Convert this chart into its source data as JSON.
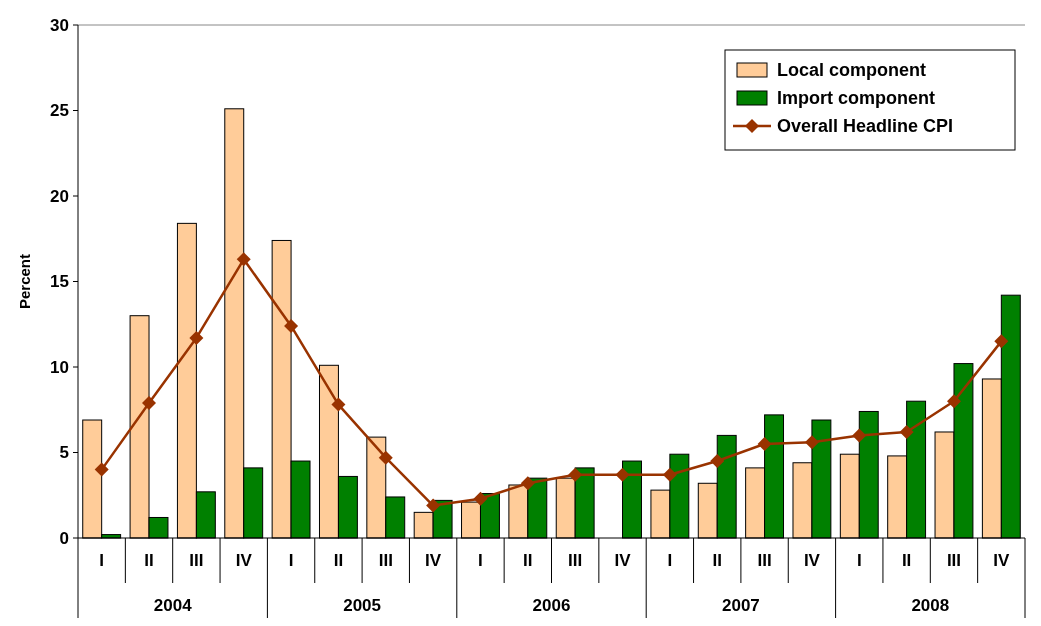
{
  "chart_data": {
    "type": "bar",
    "ylabel": "Percent",
    "categories": [
      "I",
      "II",
      "III",
      "IV",
      "I",
      "II",
      "III",
      "IV",
      "I",
      "II",
      "III",
      "IV",
      "I",
      "II",
      "III",
      "IV",
      "I",
      "II",
      "III",
      "IV"
    ],
    "annotations": [
      "2004",
      "2005",
      "2006",
      "2007",
      "2008"
    ],
    "series": [
      {
        "name": "Local component",
        "color": "#ffcc99",
        "values": [
          6.9,
          13.0,
          18.4,
          25.1,
          17.4,
          10.1,
          5.9,
          1.5,
          2.1,
          3.1,
          3.5,
          null,
          2.8,
          3.2,
          4.1,
          4.4,
          4.9,
          4.8,
          6.2,
          9.3
        ]
      },
      {
        "name": "Import component",
        "color": "#008000",
        "values": [
          0.2,
          1.2,
          2.7,
          4.1,
          4.5,
          3.6,
          2.4,
          2.2,
          2.6,
          3.5,
          4.1,
          4.5,
          4.9,
          6.0,
          7.2,
          6.9,
          7.4,
          8.0,
          10.2,
          14.2
        ]
      },
      {
        "name": "Overall Headline CPI",
        "type": "line",
        "color": "#993300",
        "values": [
          4.0,
          7.9,
          11.7,
          16.3,
          12.4,
          7.8,
          4.7,
          1.9,
          2.3,
          3.2,
          3.7,
          3.7,
          3.7,
          4.5,
          5.5,
          5.6,
          6.0,
          6.2,
          8.0,
          11.5
        ]
      }
    ],
    "ylim": [
      0,
      30
    ],
    "yticks": [
      0,
      5,
      10,
      15,
      20,
      25,
      30
    ],
    "grid": false,
    "legend": "top right",
    "marker": "diamond",
    "line_style": "solid"
  }
}
